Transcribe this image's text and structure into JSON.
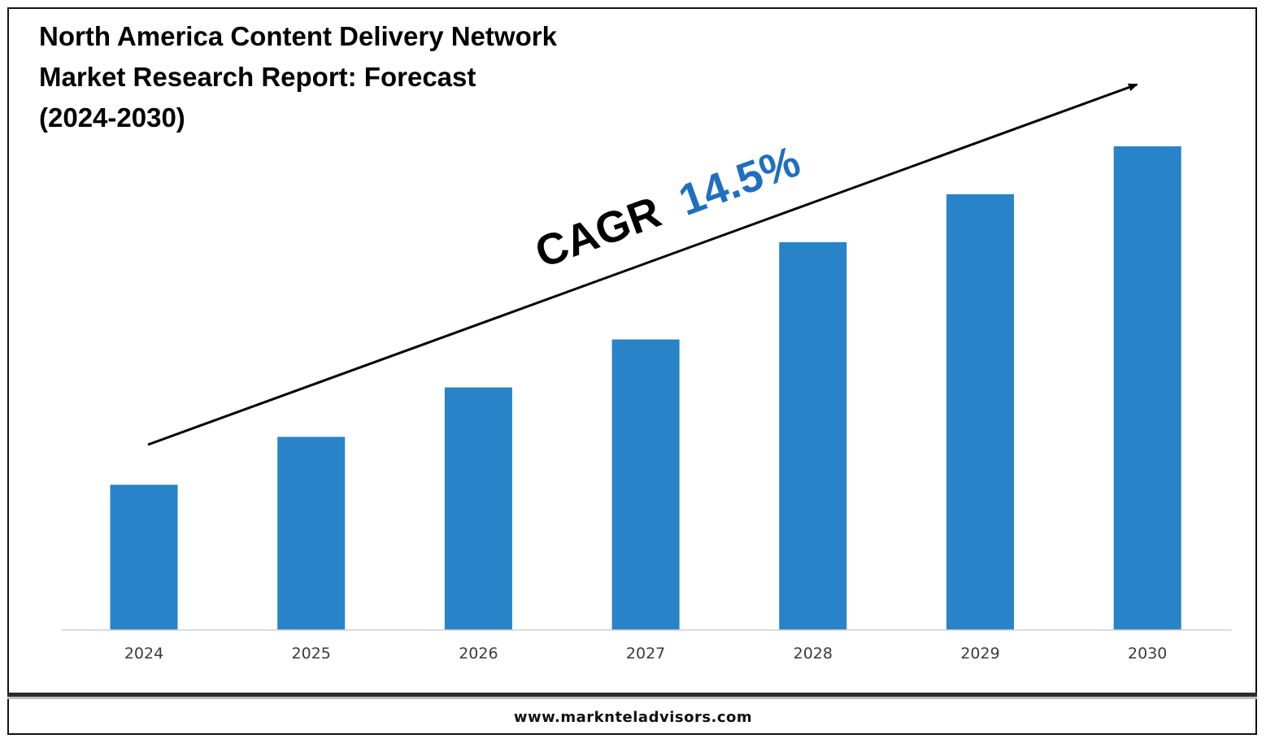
{
  "title": "North America Content Delivery Network Market Research Report: Forecast (2024-2030)",
  "footer": {
    "url": "www.marknteladvisors.com"
  },
  "annotation": {
    "label": "CAGR",
    "value": "14.5%",
    "label_color": "#000000",
    "value_color": "#1f6fbf"
  },
  "colors": {
    "bar": "#2883c8",
    "axis": "#d0d0d0",
    "arrow": "#000000"
  },
  "chart_data": {
    "type": "bar",
    "categories": [
      "2024",
      "2025",
      "2026",
      "2027",
      "2028",
      "2029",
      "2030"
    ],
    "values": [
      1.0,
      1.33,
      1.67,
      2.0,
      2.67,
      3.0,
      3.33
    ],
    "title": "North America Content Delivery Network Market Research Report: Forecast (2024-2030)",
    "xlabel": "",
    "ylabel": "",
    "ylim": [
      0,
      3.33
    ],
    "grid": false,
    "legend": "none",
    "annotations": [
      "CAGR 14.5%"
    ]
  }
}
